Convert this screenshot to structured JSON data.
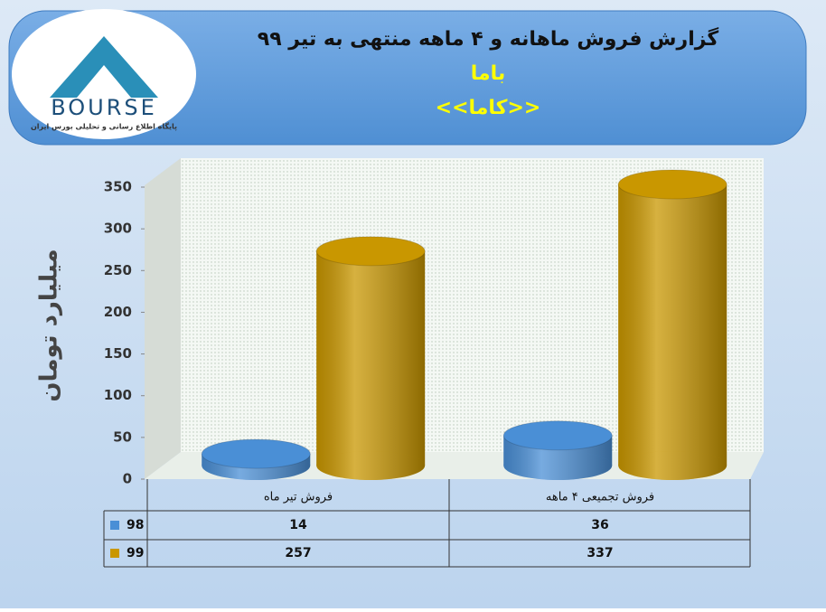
{
  "header": {
    "title": "گزارش فروش ماهانه و ۴ ماهه منتهی به تیر ۹۹",
    "company": "باما",
    "symbol": "<<کاما>>",
    "logo_text": "BOURSE",
    "logo_subtitle": "پایگاه اطلاع رسانی و تحلیلی بورس ایران"
  },
  "chart_data": {
    "type": "bar",
    "y_label": "میلیارد تومان",
    "categories": [
      "فروش تیر  ماه",
      "فروش تجمیعی ۴ ماهه"
    ],
    "series": [
      {
        "name": "98",
        "color": "#4a8fd6",
        "values": [
          14,
          36
        ]
      },
      {
        "name": "99",
        "color": "#c99700",
        "values": [
          257,
          337
        ]
      }
    ],
    "ylim": [
      0,
      350
    ],
    "yticks": [
      0,
      50,
      100,
      150,
      200,
      250,
      300,
      350
    ],
    "data_table": true
  }
}
